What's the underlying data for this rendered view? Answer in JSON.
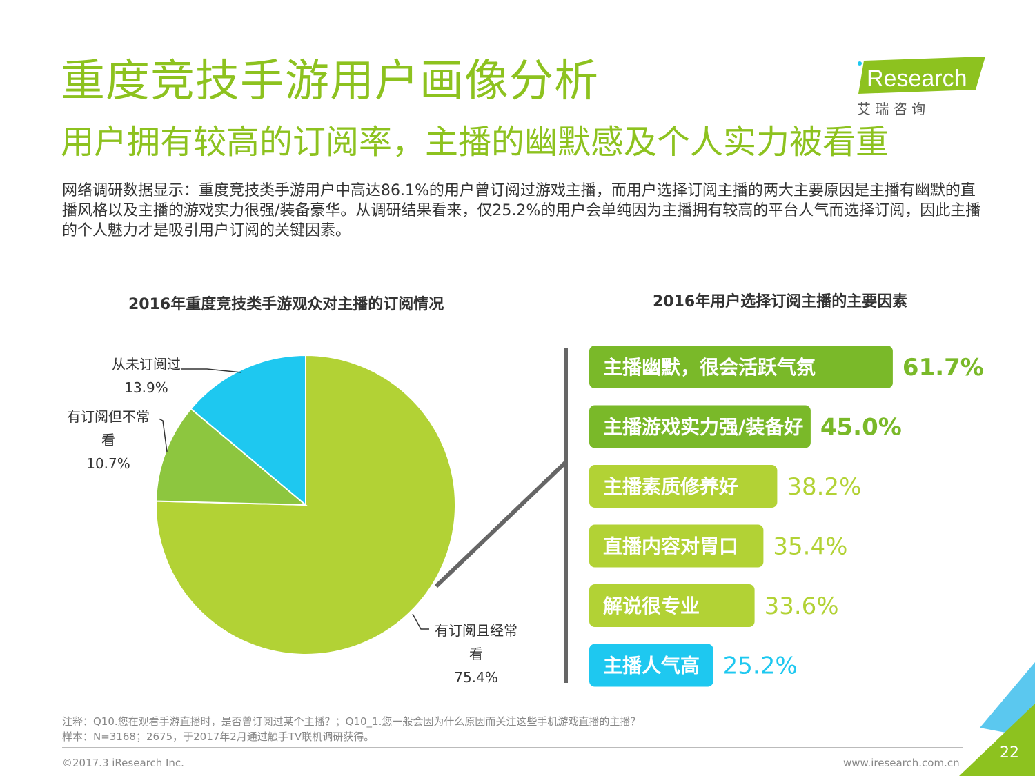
{
  "header": {
    "title": "重度竞技手游用户画像分析",
    "subtitle": "用户拥有较高的订阅率，主播的幽默感及个人实力被看重",
    "intro": "网络调研数据显示：重度竞技类手游用户中高达86.1%的用户曾订阅过游戏主播，而用户选择订阅主播的两大主要原因是主播有幽默的直播风格以及主播的游戏实力很强/装备豪华。从调研结果看来，仅25.2%的用户会单纯因为主播拥有较高的平台人气而选择订阅，因此主播的个人魅力才是吸引用户订阅的关键因素。"
  },
  "logo": {
    "brand_i": "i",
    "brand_rest": "Research",
    "tagline": "艾 瑞 咨 询"
  },
  "colors": {
    "accent": "#8dc21f",
    "pie_main": "#b2d235",
    "pie_mid": "#8dc63f",
    "pie_blue": "#1ec8f0",
    "bar_dark": "#7ab929",
    "bar_light": "#b2d235",
    "bar_blue": "#1ec8f0"
  },
  "chart_data": [
    {
      "type": "pie",
      "title": "2016年重度竞技类手游观众对主播的订阅情况",
      "slices": [
        {
          "label_lines": [
            "有订阅且经常",
            "看"
          ],
          "value_text": "75.4%",
          "value": 75.4,
          "color": "#b2d235"
        },
        {
          "label_lines": [
            "有订阅但不常",
            "看"
          ],
          "value_text": "10.7%",
          "value": 10.7,
          "color": "#8dc63f"
        },
        {
          "label_lines": [
            "从未订阅过"
          ],
          "value_text": "13.9%",
          "value": 13.9,
          "color": "#1ec8f0"
        }
      ]
    },
    {
      "type": "bar",
      "title": "2016年用户选择订阅主播的主要因素",
      "orientation": "horizontal",
      "categories": [
        "主播幽默，很会活跃气氛",
        "主播游戏实力强/装备好",
        "主播素质修养好",
        "直播内容对胃口",
        "解说很专业",
        "主播人气高"
      ],
      "values": [
        61.7,
        45.0,
        38.2,
        35.4,
        33.6,
        25.2
      ],
      "value_labels": [
        "61.7%",
        "45.0%",
        "38.2%",
        "35.4%",
        "33.6%",
        "25.2%"
      ],
      "colors": [
        "#7ab929",
        "#7ab929",
        "#b2d235",
        "#b2d235",
        "#b2d235",
        "#1ec8f0"
      ]
    }
  ],
  "footer": {
    "note_line1": "注释：Q10.您在观看手游直播时，是否曾订阅过某个主播？；Q10_1.您一般会因为什么原因而关注这些手机游戏直播的主播？",
    "note_line2": "样本：N=3168；2675，于2017年2月通过触手TV联机调研获得。",
    "copyright": "©2017.3 iResearch Inc.",
    "website": "www.iresearch.com.cn",
    "page_number": "22"
  }
}
